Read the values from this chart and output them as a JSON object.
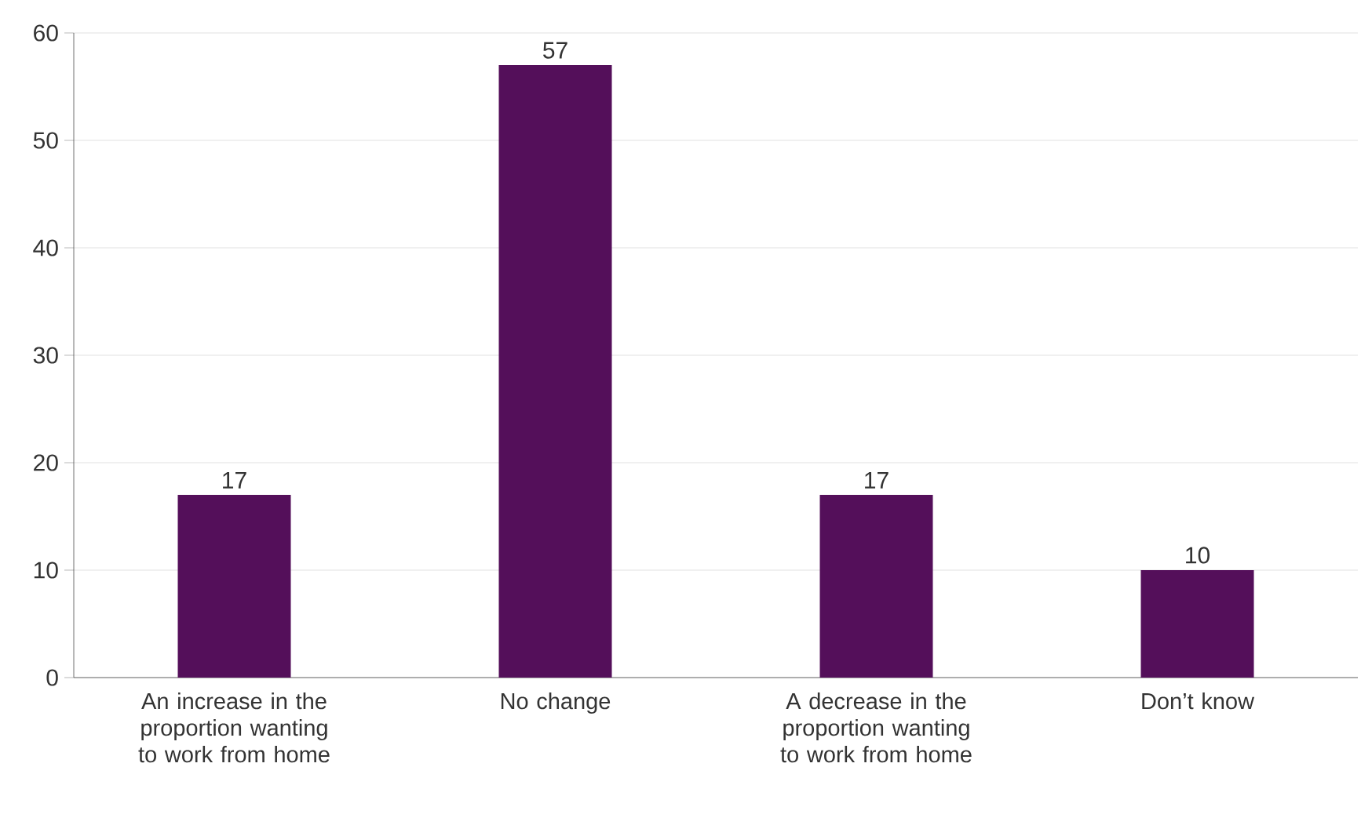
{
  "chart_data": {
    "type": "bar",
    "categories": [
      "An increase in the proportion wanting to work from home",
      "No change",
      "A decrease in the proportion wanting to work from home",
      "Don’t know"
    ],
    "values": [
      17,
      57,
      17,
      10
    ],
    "color": "#540f5a",
    "ylim": [
      0,
      60
    ],
    "yticks": [
      0,
      10,
      20,
      30,
      40,
      50,
      60
    ],
    "grid": "y",
    "data_labels": true
  }
}
